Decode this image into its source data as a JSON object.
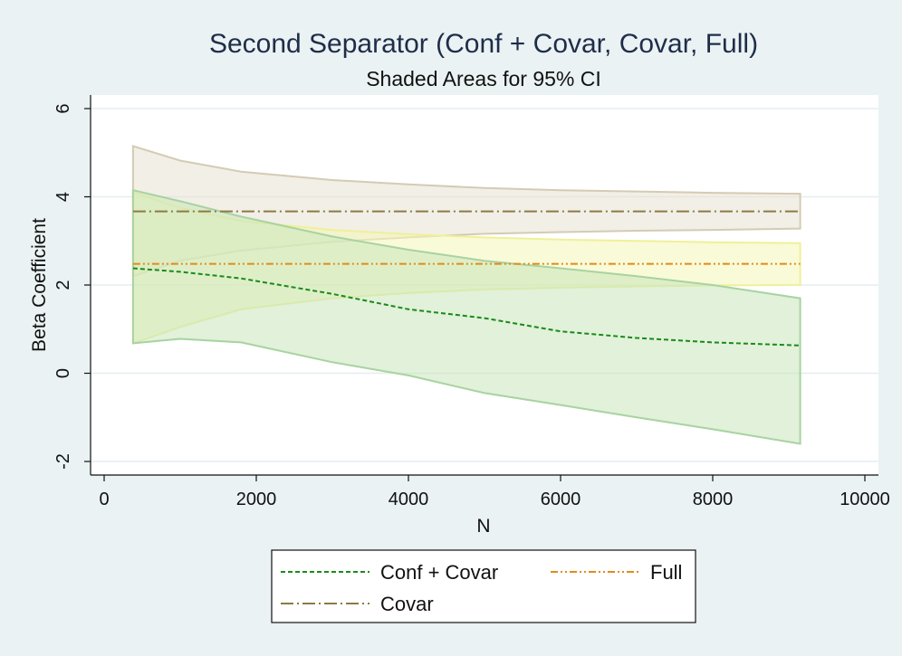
{
  "chart_data": {
    "type": "line",
    "title": "Second Separator (Conf + Covar, Covar, Full)",
    "subtitle": "Shaded Areas for 95% CI",
    "xlabel": "N",
    "ylabel": "Beta Coefficient",
    "xlim": [
      0,
      10000
    ],
    "ylim": [
      -2,
      6
    ],
    "x_ticks": [
      "0",
      "2000",
      "4000",
      "6000",
      "8000",
      "10000"
    ],
    "y_ticks": [
      "-2",
      "0",
      "2",
      "4",
      "6"
    ],
    "grid": true,
    "legend_position": "bottom",
    "series": [
      {
        "name": "Conf + Covar",
        "color": "#1a8a1a",
        "line_style": "dashed",
        "x": [
          380,
          1000,
          1800,
          3000,
          4000,
          5000,
          6000,
          7000,
          8000,
          9150
        ],
        "values": [
          2.38,
          2.3,
          2.15,
          1.8,
          1.45,
          1.25,
          0.95,
          0.8,
          0.7,
          0.63
        ],
        "ci_lower": [
          0.68,
          0.78,
          0.7,
          0.25,
          -0.05,
          -0.45,
          -0.72,
          -1.0,
          -1.27,
          -1.6
        ],
        "ci_upper": [
          4.15,
          3.9,
          3.55,
          3.1,
          2.8,
          2.55,
          2.38,
          2.2,
          2.0,
          1.7
        ],
        "ci_fill": "#c8e6bc",
        "ci_edge": "#a8d3a0"
      },
      {
        "name": "Covar",
        "color": "#8c7a45",
        "line_style": "dash-dot",
        "x": [
          380,
          9150
        ],
        "values": [
          3.67,
          3.67
        ],
        "ci_x": [
          380,
          1000,
          1800,
          3000,
          4000,
          5000,
          6000,
          7000,
          8000,
          9150
        ],
        "ci_lower": [
          2.2,
          2.55,
          2.78,
          2.98,
          3.08,
          3.16,
          3.2,
          3.23,
          3.25,
          3.28
        ],
        "ci_upper": [
          5.15,
          4.82,
          4.57,
          4.38,
          4.28,
          4.2,
          4.15,
          4.12,
          4.09,
          4.07
        ],
        "ci_fill": "#e8e2d2",
        "ci_edge": "#d4cbb4"
      },
      {
        "name": "Full",
        "color": "#e08c1a",
        "line_style": "dash-dot-dot",
        "x": [
          380,
          9150
        ],
        "values": [
          2.48,
          2.48
        ],
        "ci_x": [
          380,
          1000,
          1800,
          3000,
          4000,
          5000,
          6000,
          7000,
          8000,
          9150
        ],
        "ci_lower": [
          0.68,
          1.05,
          1.45,
          1.7,
          1.82,
          1.9,
          1.94,
          1.97,
          1.99,
          2.0
        ],
        "ci_upper": [
          4.1,
          3.75,
          3.45,
          3.25,
          3.15,
          3.08,
          3.03,
          3.0,
          2.97,
          2.95
        ],
        "ci_fill": "#f4f6b8",
        "ci_edge": "#f0f098"
      }
    ]
  }
}
